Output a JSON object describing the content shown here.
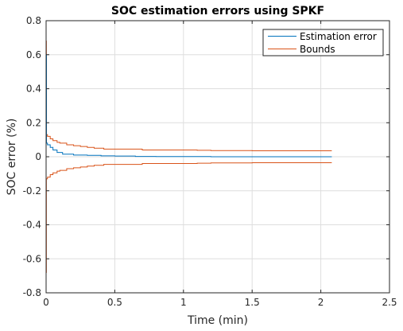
{
  "chart_data": {
    "type": "line",
    "title": "SOC estimation errors using SPKF",
    "xlabel": "Time (min)",
    "ylabel": "SOC error (%)",
    "xlim": [
      0,
      2.5
    ],
    "ylim": [
      -0.8,
      0.8
    ],
    "xticks": [
      "0",
      "0.5",
      "1",
      "1.5",
      "2",
      "2.5"
    ],
    "yticks": [
      "-0.8",
      "-0.6",
      "-0.4",
      "-0.2",
      "0",
      "0.2",
      "0.4",
      "0.6",
      "0.8"
    ],
    "grid": true,
    "legend": {
      "position": "top-right"
    },
    "series": [
      {
        "name": "Estimation error",
        "color": "#0072BD",
        "x": [
          0,
          0.003,
          0.01,
          0.03,
          0.05,
          0.08,
          0.12,
          0.2,
          0.3,
          0.4,
          0.5,
          0.65,
          0.8,
          1.0,
          1.2,
          1.5,
          1.8,
          2.08
        ],
        "y": [
          0.6,
          0.08,
          0.07,
          0.055,
          0.04,
          0.025,
          0.015,
          0.01,
          0.008,
          0.005,
          0.004,
          0.002,
          0.001,
          0.001,
          0.0,
          0.0,
          0.0,
          0.0
        ]
      },
      {
        "name": "Bounds",
        "color": "#D95319",
        "x": [
          0,
          0.002,
          0.01,
          0.03,
          0.05,
          0.08,
          0.1,
          0.15,
          0.2,
          0.25,
          0.3,
          0.35,
          0.42,
          0.5,
          0.6,
          0.7,
          0.8,
          0.9,
          1.0,
          1.1,
          1.2,
          1.5,
          1.8,
          2.08
        ],
        "upper": [
          0.68,
          0.13,
          0.12,
          0.105,
          0.095,
          0.085,
          0.08,
          0.07,
          0.065,
          0.06,
          0.055,
          0.05,
          0.045,
          0.045,
          0.045,
          0.04,
          0.04,
          0.04,
          0.04,
          0.038,
          0.036,
          0.035,
          0.035,
          0.035
        ],
        "lower": [
          -0.68,
          -0.13,
          -0.12,
          -0.105,
          -0.095,
          -0.085,
          -0.08,
          -0.07,
          -0.065,
          -0.06,
          -0.055,
          -0.05,
          -0.045,
          -0.045,
          -0.045,
          -0.04,
          -0.04,
          -0.04,
          -0.04,
          -0.038,
          -0.036,
          -0.035,
          -0.035,
          -0.035
        ]
      }
    ]
  }
}
